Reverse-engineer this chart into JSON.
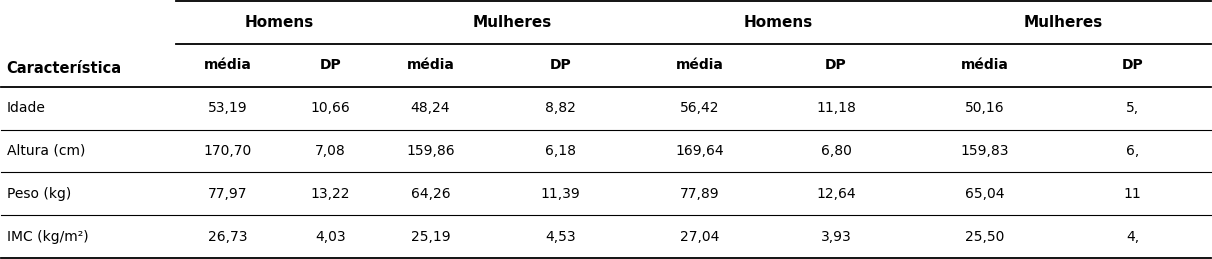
{
  "group_labels": [
    "Homens",
    "Mulheres",
    "Homens",
    "Mulheres"
  ],
  "sub_headers": [
    "média",
    "DP",
    "média",
    "DP",
    "média",
    "DP",
    "média",
    "DP"
  ],
  "row_labels": [
    "Idade",
    "Altura (cm)",
    "Peso (kg)",
    "IMC (kg/m²)"
  ],
  "char_label": "Característica",
  "rows": [
    [
      "53,19",
      "10,66",
      "48,24",
      "8,82",
      "56,42",
      "11,18",
      "50,16",
      "5,"
    ],
    [
      "170,70",
      "7,08",
      "159,86",
      "6,18",
      "169,64",
      "6,80",
      "159,83",
      "6,"
    ],
    [
      "77,97",
      "13,22",
      "64,26",
      "11,39",
      "77,89",
      "12,64",
      "65,04",
      "11"
    ],
    [
      "26,73",
      "4,03",
      "25,19",
      "4,53",
      "27,04",
      "3,93",
      "25,50",
      "4,"
    ]
  ],
  "background_color": "#ffffff",
  "line_color": "#000000",
  "header_fontsize": 10,
  "data_fontsize": 10,
  "label_fontsize": 10
}
